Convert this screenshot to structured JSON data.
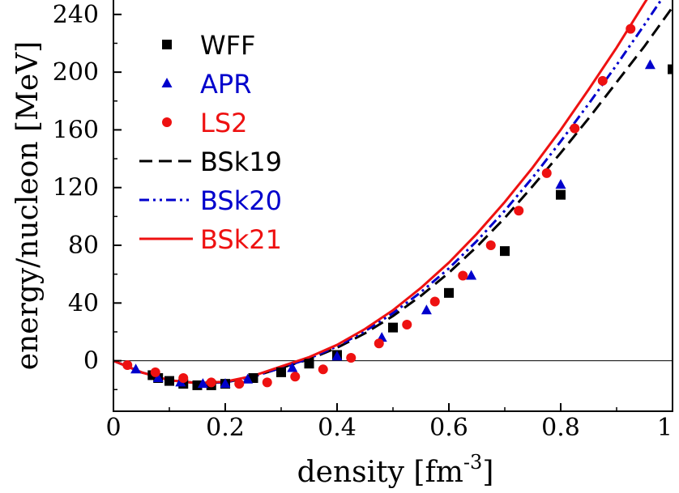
{
  "chart_data": {
    "type": "scatter",
    "xlabel": "density [fm",
    "xlabel_sup": "-3",
    "xlabel_end": "]",
    "ylabel": "energy/nucleon [MeV]",
    "xlim": [
      0,
      1
    ],
    "ylim": [
      -35,
      250
    ],
    "x_ticks": [
      0,
      0.2,
      0.4,
      0.6,
      0.8,
      1
    ],
    "x_tick_labels": [
      "0",
      "0.2",
      "0.4",
      "0.6",
      "0.8",
      "1"
    ],
    "y_ticks": [
      0,
      40,
      80,
      120,
      160,
      200,
      240
    ],
    "y_tick_labels": [
      "0",
      "40",
      "80",
      "120",
      "160",
      "200",
      "240"
    ],
    "zero_line": true,
    "grid": false,
    "legend_position": "top-left",
    "series": [
      {
        "name": "WFF",
        "kind": "points",
        "marker": "square",
        "color": "#000000",
        "x": [
          0.07,
          0.08,
          0.1,
          0.125,
          0.15,
          0.175,
          0.2,
          0.25,
          0.3,
          0.35,
          0.4,
          0.5,
          0.6,
          0.7,
          0.8,
          1.0
        ],
        "y": [
          -10,
          -12,
          -14,
          -16,
          -17,
          -17,
          -16,
          -12,
          -8,
          -2,
          4,
          23,
          47,
          76,
          115,
          202
        ]
      },
      {
        "name": "APR",
        "kind": "points",
        "marker": "triangle",
        "color": "#0000cc",
        "x": [
          0.04,
          0.08,
          0.12,
          0.16,
          0.2,
          0.24,
          0.32,
          0.4,
          0.48,
          0.56,
          0.64,
          0.8,
          0.96
        ],
        "y": [
          -6,
          -12,
          -15,
          -16,
          -16,
          -13,
          -5,
          3,
          16,
          35,
          59,
          122,
          205
        ]
      },
      {
        "name": "LS2",
        "kind": "points",
        "marker": "circle",
        "color": "#ee1111",
        "x": [
          0.025,
          0.075,
          0.125,
          0.175,
          0.225,
          0.275,
          0.325,
          0.375,
          0.425,
          0.475,
          0.525,
          0.575,
          0.625,
          0.675,
          0.725,
          0.775,
          0.825,
          0.875,
          0.925
        ],
        "y": [
          -3,
          -8,
          -12,
          -15,
          -16,
          -15,
          -11,
          -6,
          2,
          12,
          25,
          41,
          59,
          80,
          104,
          130,
          161,
          194,
          230
        ]
      },
      {
        "name": "BSk19",
        "kind": "line",
        "dash": "dashed",
        "color": "#000000",
        "x": [
          0,
          0.05,
          0.1,
          0.15,
          0.2,
          0.25,
          0.3,
          0.35,
          0.4,
          0.45,
          0.5,
          0.55,
          0.6,
          0.65,
          0.7,
          0.75,
          0.8,
          0.85,
          0.9,
          0.95,
          1.0
        ],
        "y": [
          0,
          -8,
          -13.5,
          -15.5,
          -15,
          -11,
          -5,
          1,
          9,
          19,
          31,
          45,
          61,
          79,
          99,
          121,
          144,
          168,
          193,
          218,
          245
        ]
      },
      {
        "name": "BSk20",
        "kind": "line",
        "dash": "dash-dot-dot",
        "color": "#0000cc",
        "x": [
          0,
          0.05,
          0.1,
          0.15,
          0.2,
          0.25,
          0.3,
          0.35,
          0.4,
          0.45,
          0.5,
          0.55,
          0.6,
          0.65,
          0.7,
          0.75,
          0.8,
          0.85,
          0.9,
          0.95,
          0.99
        ],
        "y": [
          0,
          -8,
          -13.5,
          -15.5,
          -15,
          -11,
          -5,
          1.5,
          10,
          20.5,
          33,
          47.5,
          64,
          83,
          104,
          127,
          152,
          178,
          205,
          233,
          256
        ]
      },
      {
        "name": "BSk21",
        "kind": "line",
        "dash": "solid",
        "color": "#ee1111",
        "x": [
          0,
          0.05,
          0.1,
          0.15,
          0.2,
          0.25,
          0.3,
          0.35,
          0.4,
          0.45,
          0.5,
          0.55,
          0.6,
          0.65,
          0.7,
          0.75,
          0.8,
          0.85,
          0.9,
          0.95,
          0.97
        ],
        "y": [
          0,
          -8,
          -13.5,
          -15.5,
          -14.5,
          -10.5,
          -4,
          2.5,
          11,
          22,
          35,
          50.5,
          68,
          88,
          110,
          134,
          160,
          188,
          217,
          248,
          260
        ]
      }
    ]
  }
}
